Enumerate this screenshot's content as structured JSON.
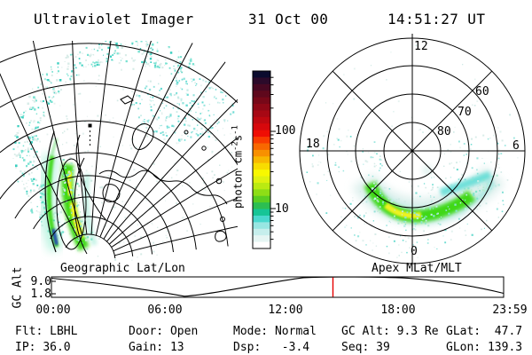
{
  "header": {
    "title": "Ultraviolet Imager",
    "date": "31 Oct 00",
    "time": "14:51:27 UT"
  },
  "map_panel": {
    "caption": "Geographic Lat/Lon"
  },
  "polar_panel": {
    "caption": "Apex MLat/MLT",
    "mlt_labels": [
      "12",
      "18",
      "6",
      "0"
    ],
    "lat_labels": [
      "80",
      "70",
      "60"
    ]
  },
  "colorbar": {
    "unit_prefix": "photon cm",
    "unit_sup1": "-2",
    "unit_mid": "s",
    "unit_sup2": "-1",
    "ticks": [
      "100",
      "10"
    ],
    "palette": [
      "#0b0b2e",
      "#2b0a2a",
      "#470822",
      "#5f081c",
      "#770818",
      "#8f0816",
      "#a70814",
      "#bf0810",
      "#d7080c",
      "#ef0e04",
      "#f83c00",
      "#f86800",
      "#f89000",
      "#f8b800",
      "#f8dc00",
      "#f8f800",
      "#dff210",
      "#baea12",
      "#8ede16",
      "#5ace22",
      "#2cbe52",
      "#16c596",
      "#4ad8ce",
      "#98e6e2",
      "#c6eeec",
      "#e6f5f3",
      "#ffffff"
    ]
  },
  "timeline": {
    "ylabel": "GC Alt",
    "yticks": [
      "9.0",
      "1.8"
    ],
    "xticks": [
      "00:00",
      "06:00",
      "12:00",
      "18:00",
      "23:59"
    ],
    "marker_time": "14:51",
    "marker_color": "#e60000"
  },
  "footer": {
    "row1": [
      {
        "label": "Flt:",
        "value": "LBHL"
      },
      {
        "label": "Door:",
        "value": "Open"
      },
      {
        "label": "Mode:",
        "value": "Normal"
      },
      {
        "label": "GC Alt:",
        "value": "9.3 Re"
      },
      {
        "label": "GLat:",
        "value": " 47.7"
      }
    ],
    "row2": [
      {
        "label": "IP:",
        "value": "36.0"
      },
      {
        "label": "Gain:",
        "value": "13"
      },
      {
        "label": "Dsp:",
        "value": "  -3.4"
      },
      {
        "label": "Seq:",
        "value": "39"
      },
      {
        "label": "GLon:",
        "value": "139.3"
      }
    ]
  },
  "colors": {
    "aurora_green": "#3fd818",
    "aurora_yellow": "#eef222",
    "aurora_cyan": "#5cdcd4",
    "aurora_blue": "#2238c8",
    "speckle_cyan": "#79e2d2",
    "speckle_teal": "#3ccfc0",
    "speckle_pale": "#d8ece8",
    "grid": "#000000",
    "marker_red": "#e60000"
  },
  "chart_data": [
    {
      "type": "heatmap",
      "title": "Geographic Lat/Lon",
      "description": "UV auroral image projected onto a geographic lat/lon graticule with coastlines; bright auroral arc (>100 photon cm-2 s-1, yellow-green) along the dusk limb near the left edge; diffuse cyan airglow band along the sunlit limb and a faint cyan patch upper right",
      "colorbar_units": "photon cm-2 s-1",
      "colorbar_ticks": [
        100,
        10
      ]
    },
    {
      "type": "heatmap",
      "title": "Apex MLat/MLT",
      "description": "Auroral oval in Apex magnetic latitude / magnetic local time; bright green arc with yellow core spanning ~17-03 MLT between ~60 and 72 MLat, peak brightness near 21-22 MLT, cyan diffuse tail toward 03-04 MLT",
      "rings_mlat": [
        80,
        70,
        60,
        50
      ],
      "mlt_spoke_labels": [
        12,
        18,
        6,
        0
      ]
    },
    {
      "type": "line",
      "title": "GC Alt",
      "ylabel": "GC Alt (Re)",
      "yticks": [
        9.0,
        1.8
      ],
      "x_range": [
        "00:00",
        "23:59"
      ],
      "points": [
        [
          "00:00",
          9.5
        ],
        [
          "03:00",
          6.5
        ],
        [
          "06:50",
          1.8
        ],
        [
          "10:00",
          6.0
        ],
        [
          "13:00",
          9.0
        ],
        [
          "15:00",
          9.6
        ],
        [
          "17:30",
          9.2
        ],
        [
          "20:00",
          7.0
        ],
        [
          "23:59",
          2.0
        ]
      ],
      "marker": {
        "time": "14:51",
        "color": "#e60000"
      }
    }
  ]
}
